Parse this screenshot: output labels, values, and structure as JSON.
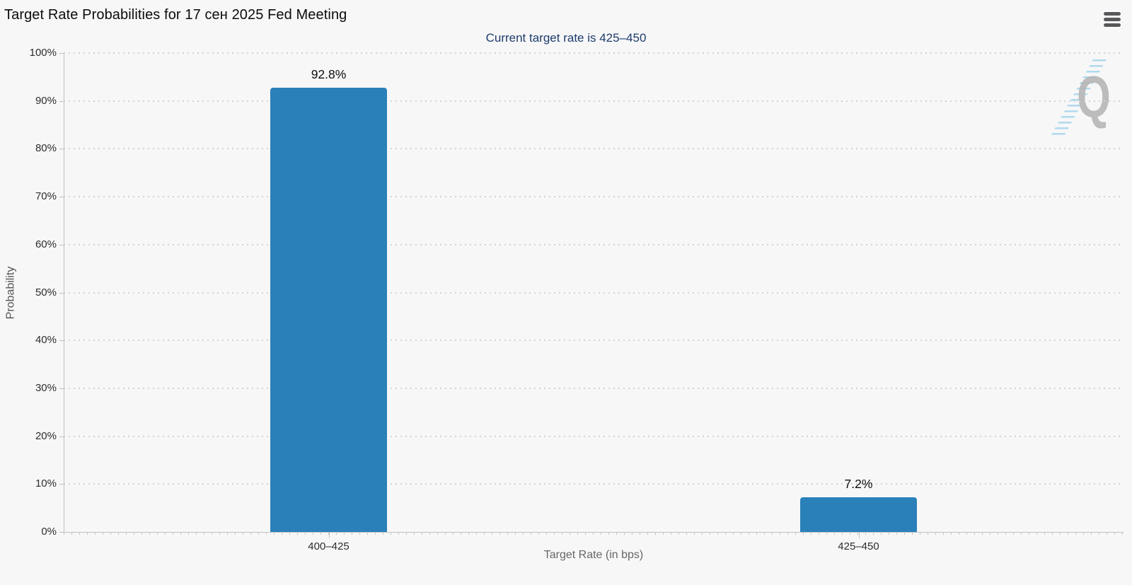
{
  "header": {
    "title": "Target Rate Probabilities for 17 сен 2025 Fed Meeting",
    "menu_icon": "hamburger-menu"
  },
  "chart_data": {
    "type": "bar",
    "title": "Target Rate Probabilities for 17 сен 2025 Fed Meeting",
    "subtitle": "Current target rate is 425–450",
    "xlabel": "Target Rate (in bps)",
    "ylabel": "Probability",
    "categories": [
      "400–425",
      "425–450"
    ],
    "values": [
      92.8,
      7.2
    ],
    "value_labels": [
      "92.8%",
      "7.2%"
    ],
    "ylim": [
      0,
      100
    ],
    "ytick_step": 10,
    "ytick_labels": [
      "0%",
      "10%",
      "20%",
      "30%",
      "40%",
      "50%",
      "60%",
      "70%",
      "80%",
      "90%",
      "100%"
    ],
    "grid": "horizontal-dotted",
    "legend_position": "none",
    "bar_color": "#2a80b9"
  },
  "watermark": {
    "letter": "Q"
  },
  "colors": {
    "background": "#f7f7f8",
    "bar": "#2a80b9",
    "subtitle_text": "#1e3c6c",
    "title_text": "#0c0c0c",
    "axis_line": "#c2c2c2",
    "grid_dot": "#d2d2d2",
    "tick_text": "#2d2d2d",
    "axis_title_text": "#666666",
    "menu_icon": "#58585b",
    "watermark_gray": "#b6b6b6",
    "watermark_blue": "#8fcce8"
  }
}
